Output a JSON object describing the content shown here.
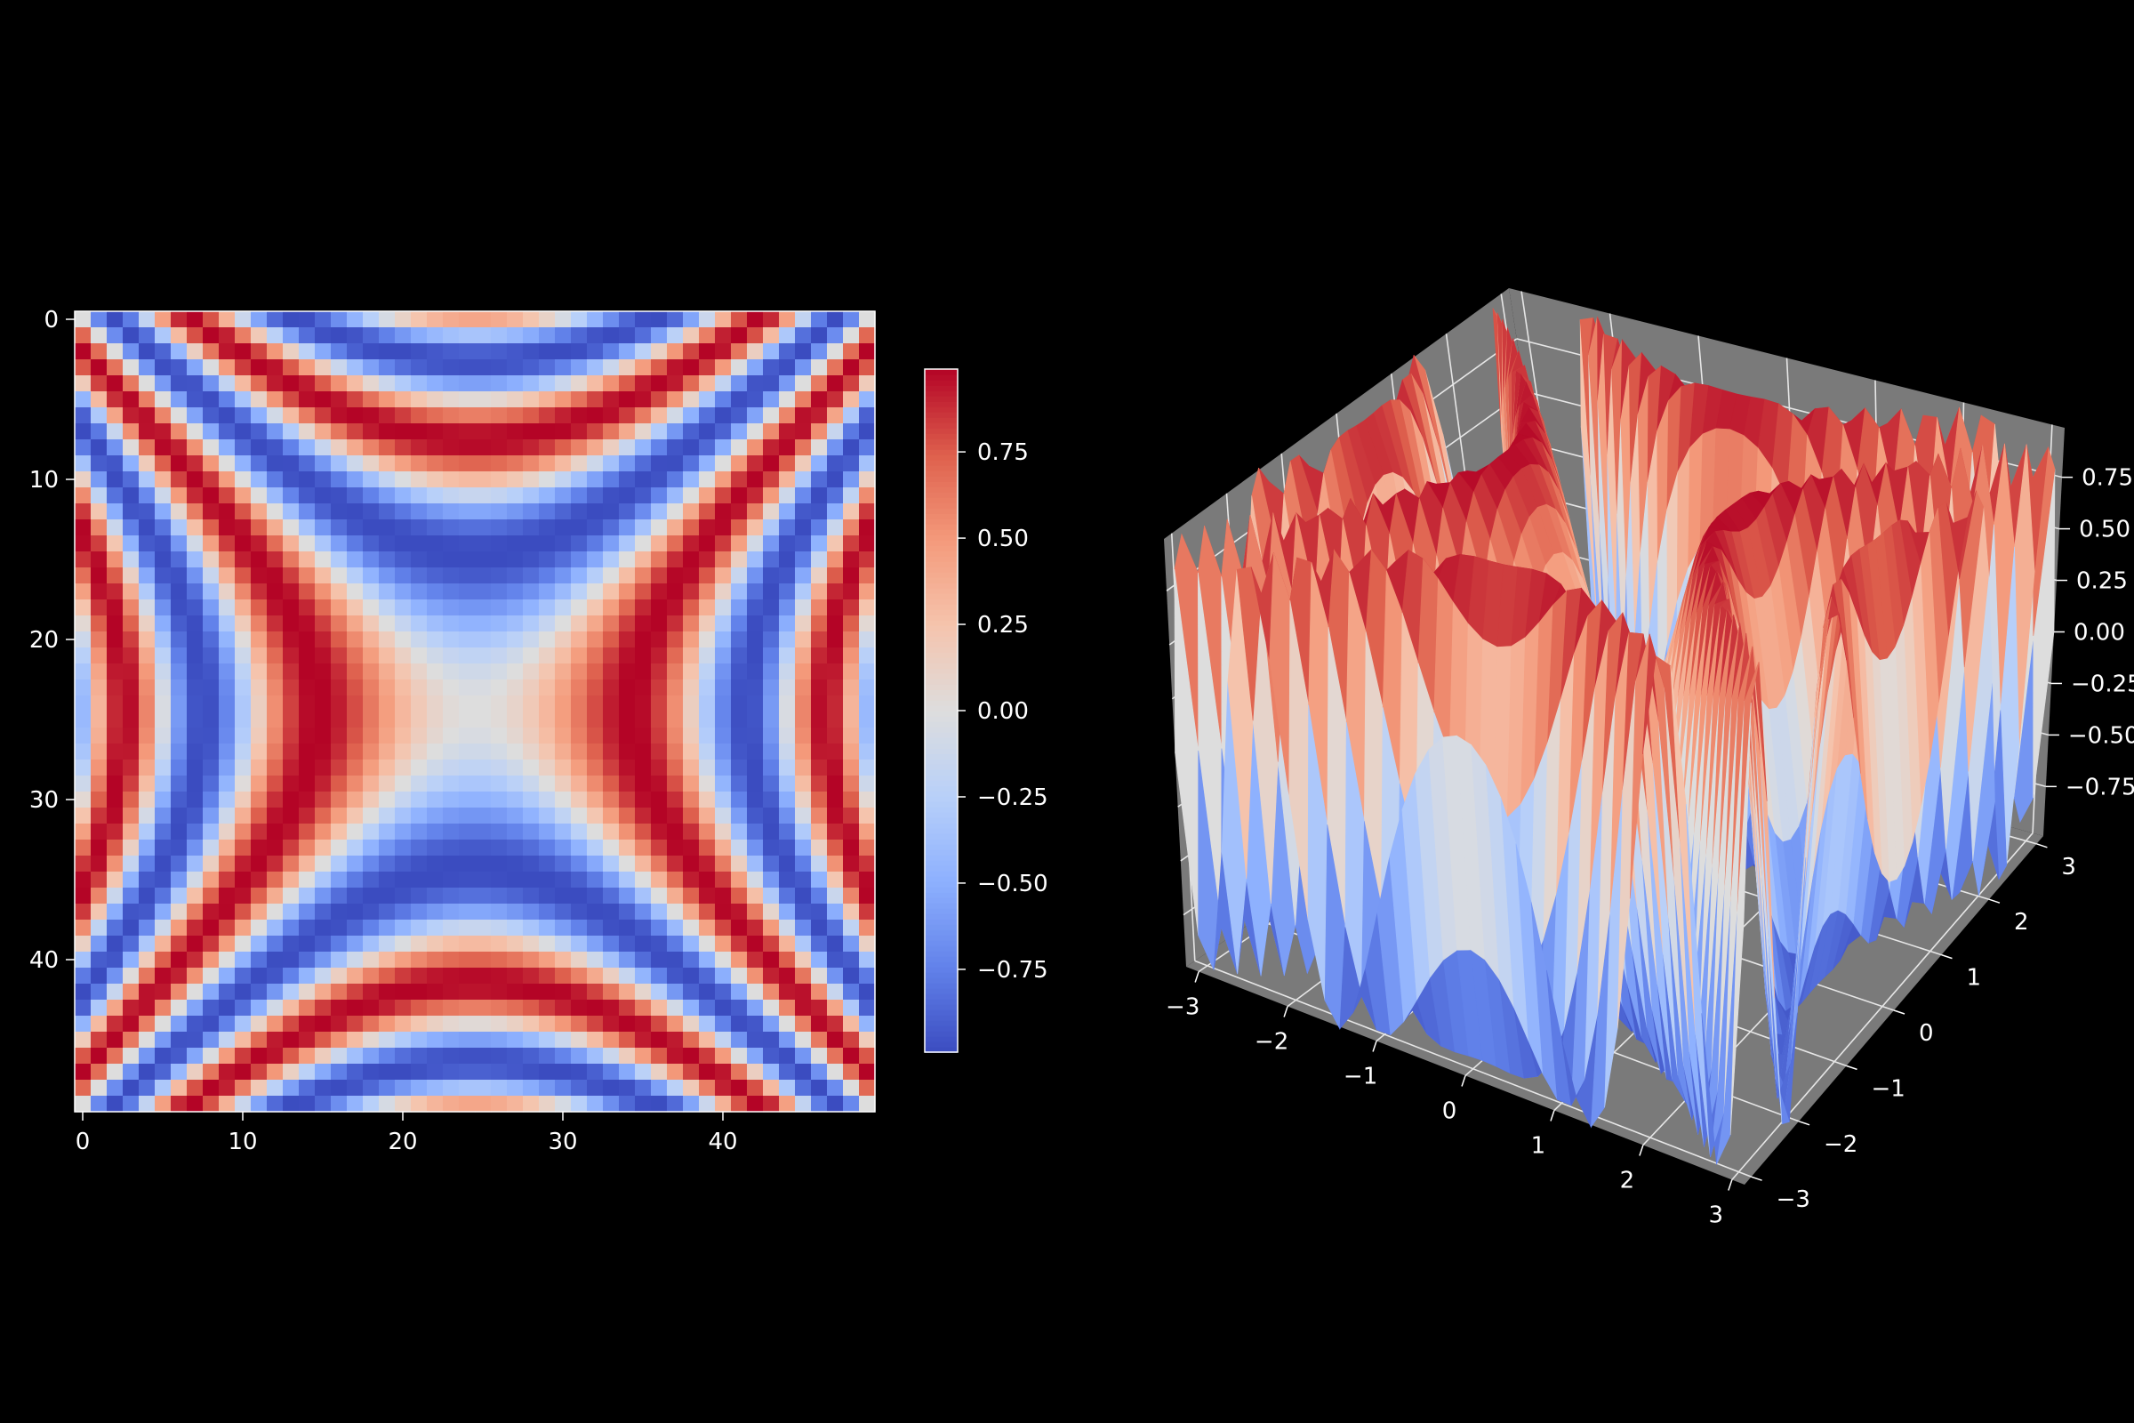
{
  "figure": {
    "background": "#000000",
    "text_color": "#ffffff"
  },
  "chart_data": [
    {
      "type": "heatmap",
      "colormap": "coolwarm",
      "grid_size": [
        50,
        50
      ],
      "function": "z = sin(x^2 - y^2) for x, y in [-pi, pi], rendered on a 50x50 grid",
      "x": {
        "min": -3.14159,
        "max": 3.14159,
        "n": 50
      },
      "y": {
        "min": -3.14159,
        "max": 3.14159,
        "n": 50
      },
      "vrange": [
        -0.99,
        0.99
      ],
      "xlim": [
        -0.5,
        49.5
      ],
      "ylim": [
        49.5,
        -0.5
      ],
      "xticks": [
        0,
        10,
        20,
        30,
        40
      ],
      "xtick_labels": [
        "0",
        "10",
        "20",
        "30",
        "40"
      ],
      "yticks": [
        0,
        10,
        20,
        30,
        40
      ],
      "ytick_labels": [
        "0",
        "10",
        "20",
        "30",
        "40"
      ],
      "colorbar": {
        "ticks": [
          0.75,
          0.5,
          0.25,
          0.0,
          -0.25,
          -0.5,
          -0.75
        ],
        "tick_labels": [
          "0.75",
          "0.50",
          "0.25",
          "0.00",
          "−0.25",
          "−0.50",
          "−0.75"
        ]
      }
    },
    {
      "type": "surface3d",
      "colormap": "coolwarm",
      "function": "z = sin(x^2 - y^2)",
      "pane_color": "#7a7a7a",
      "xlim": [
        -3.14159,
        3.14159
      ],
      "ylim": [
        -3.14159,
        3.14159
      ],
      "zlim": [
        -0.99,
        0.99
      ],
      "xticks": [
        -3,
        -2,
        -1,
        0,
        1,
        2,
        3
      ],
      "xtick_labels": [
        "−3",
        "−2",
        "−1",
        "0",
        "1",
        "2",
        "3"
      ],
      "yticks": [
        -3,
        -2,
        -1,
        0,
        1,
        2,
        3
      ],
      "ytick_labels": [
        "−3",
        "−2",
        "−1",
        "0",
        "1",
        "2",
        "3"
      ],
      "zticks": [
        0.75,
        0.5,
        0.25,
        0.0,
        -0.25,
        -0.5,
        -0.75
      ],
      "ztick_labels": [
        "0.75",
        "0.50",
        "0.25",
        "0.00",
        "−0.25",
        "−0.50",
        "−0.75"
      ]
    }
  ]
}
